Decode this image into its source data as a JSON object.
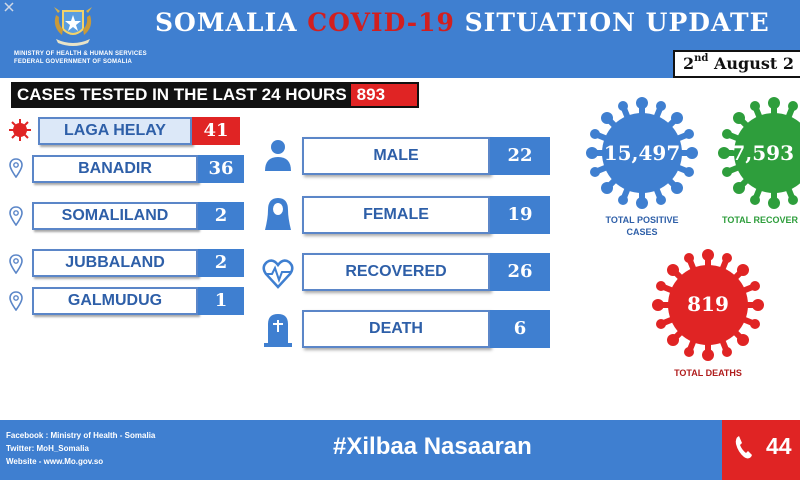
{
  "header": {
    "ministry_line1": "MINISTRY OF HEALTH & HUMAN SERVICES",
    "ministry_line2": "FEDERAL GOVERNMENT OF SOMALIA",
    "title_part1": "SOMALIA ",
    "title_highlight": "COVID-19",
    "title_part2": " SITUATION UPDATE",
    "date_day": "2",
    "date_suffix": "nd",
    "date_rest": " August 2"
  },
  "tested": {
    "label": "CASES TESTED IN THE LAST 24 HOURS",
    "value": "893"
  },
  "regions": [
    {
      "label": "LAGA HELAY",
      "value": "41"
    },
    {
      "label": "BANADIR",
      "value": "36"
    },
    {
      "label": "SOMALILAND",
      "value": "2"
    },
    {
      "label": "JUBBALAND",
      "value": "2"
    },
    {
      "label": "GALMUDUG",
      "value": "1"
    }
  ],
  "stats": [
    {
      "label": "MALE",
      "value": "22"
    },
    {
      "label": "FEMALE",
      "value": "19"
    },
    {
      "label": "RECOVERED",
      "value": "26"
    },
    {
      "label": "DEATH",
      "value": "6"
    }
  ],
  "totals": {
    "positive": {
      "value": "15,497",
      "label_line1": "TOTAL POSITIVE",
      "label_line2": "CASES"
    },
    "recovered": {
      "value": "7,593",
      "label": "TOTAL RECOVER"
    },
    "deaths": {
      "value": "819",
      "label": "TOTAL DEATHS"
    }
  },
  "footer": {
    "facebook": "Facebook : Ministry of Health - Somalia",
    "twitter": "Twitter: MoH_Somalia",
    "website": "Website - www.Mo.gov.so",
    "hashtag": "#Xilbaa Nasaaran",
    "hotline": "44"
  },
  "colors": {
    "brand_blue": "#3f7fd0",
    "alert_red": "#e02424",
    "recovered_green": "#2e9e3c",
    "label_blue": "#2e5fa8"
  },
  "icons": [
    "emblem-icon",
    "virus-icon",
    "location-pin-icon",
    "male-icon",
    "female-icon",
    "heartbeat-icon",
    "tombstone-icon",
    "phone-icon",
    "close-icon"
  ]
}
